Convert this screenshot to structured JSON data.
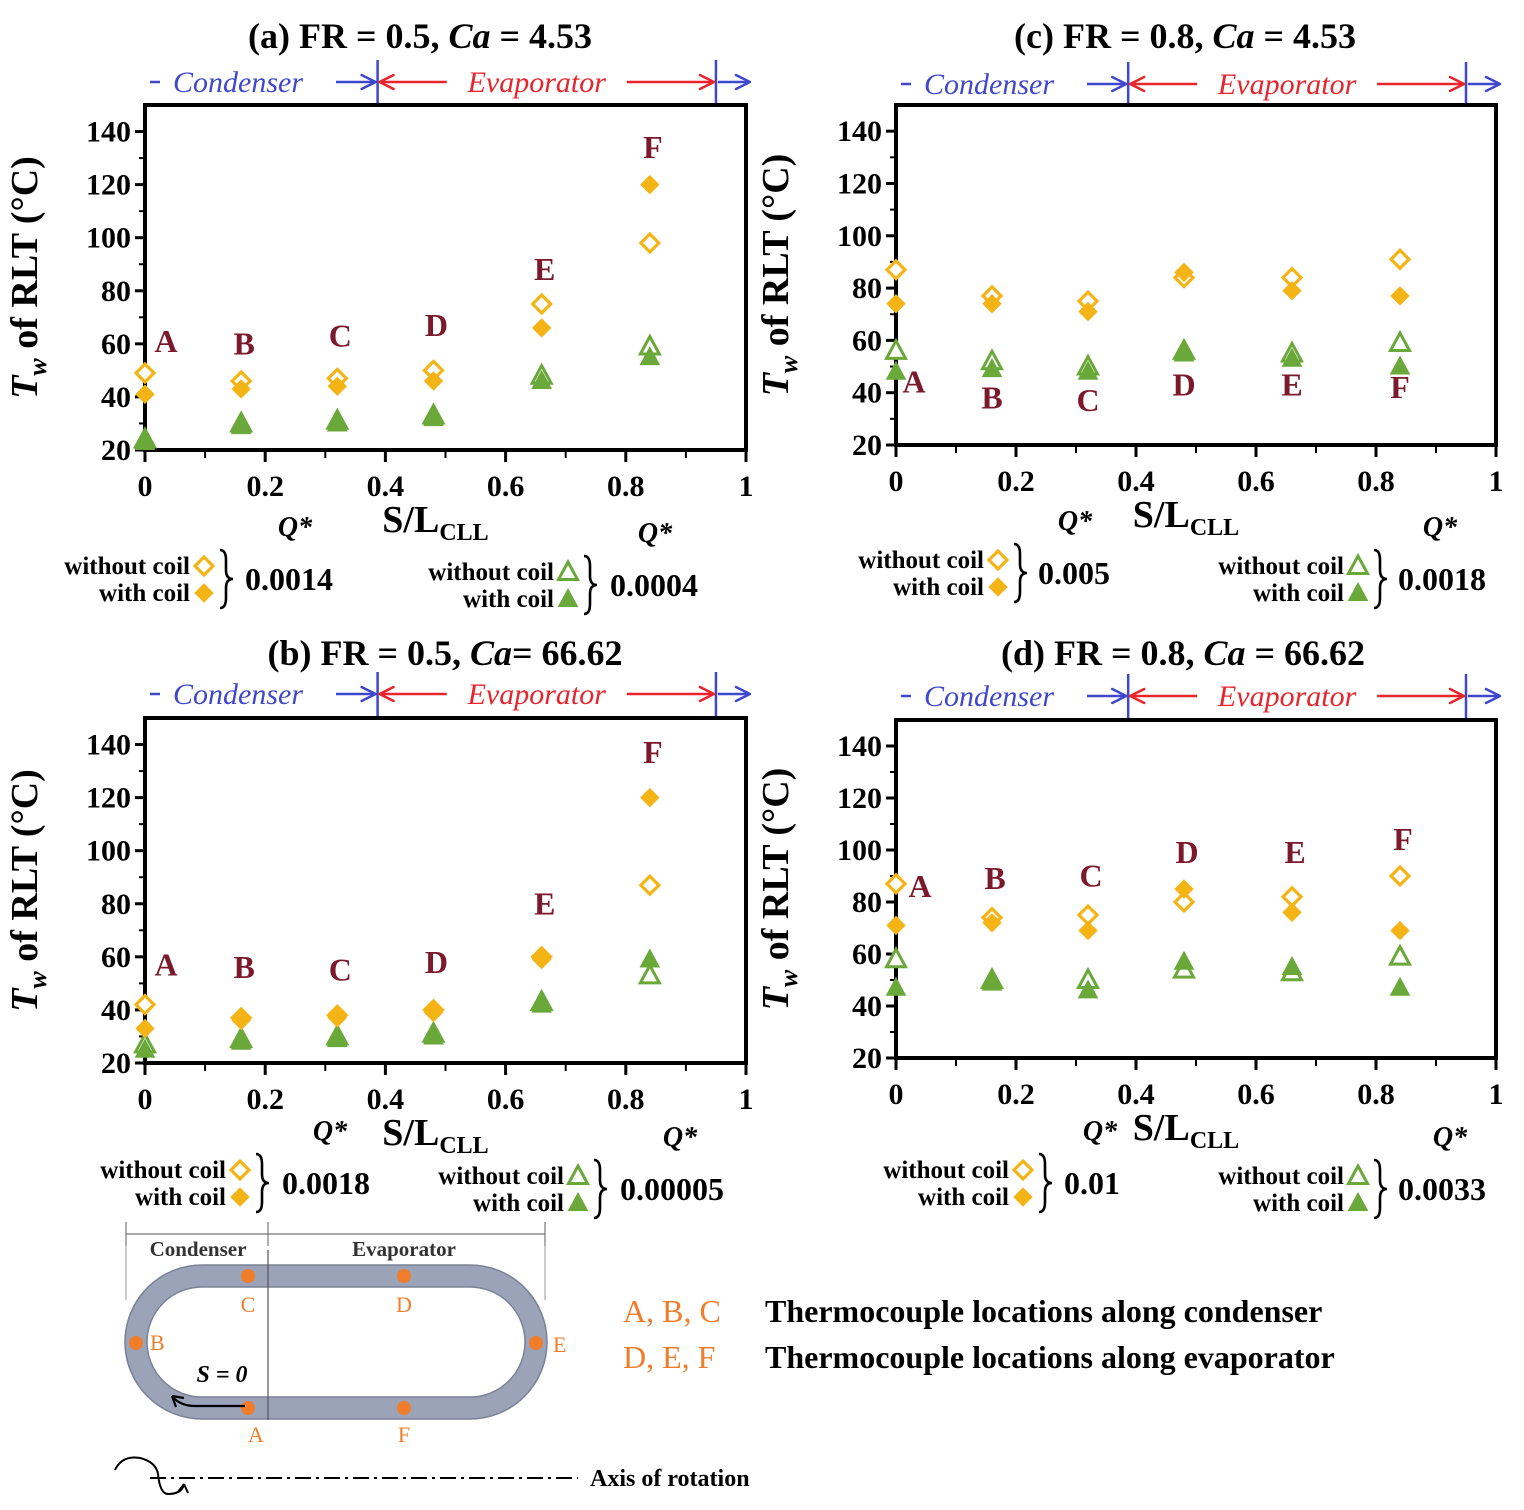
{
  "colors": {
    "diamond": "#f5b416",
    "triangle": "#6aa83a",
    "point_label": "#7b1a2c",
    "condenser": "#3f48cc",
    "evaporator": "#e8242c",
    "tube": "#9ba3b8",
    "tube_edge": "#7a8296",
    "thermocouple": "#ef7d2a"
  },
  "chart_data": [
    {
      "id": "a",
      "type": "scatter",
      "title_parts": {
        "prefix": "(a) FR = 0.5, ",
        "ca": "Ca",
        "suffix": " = 4.53"
      },
      "xlabel": {
        "main": "S/L",
        "sub": "CLL"
      },
      "ylabel": {
        "t": "T",
        "sub": "w",
        "rest": " of RLT (°C)"
      },
      "xlim": [
        0,
        1
      ],
      "ylim": [
        20,
        150
      ],
      "xticks": [
        "0",
        "0.2",
        "0.4",
        "0.6",
        "0.8",
        "1"
      ],
      "yticks": [
        "20",
        "40",
        "60",
        "80",
        "100",
        "120",
        "140"
      ],
      "regions": {
        "condenser": "Condenser",
        "evaporator": "Evaporator"
      },
      "series": [
        {
          "name": "without coil",
          "marker": "diamond-open",
          "x": [
            0,
            0.16,
            0.32,
            0.48,
            0.66,
            0.84
          ],
          "y": [
            49,
            46,
            47,
            50,
            75,
            98
          ]
        },
        {
          "name": "with coil",
          "marker": "diamond-filled",
          "x": [
            0,
            0.16,
            0.32,
            0.48,
            0.66,
            0.84
          ],
          "y": [
            41,
            43,
            44,
            46,
            66,
            120
          ]
        },
        {
          "name": "without coil",
          "marker": "triangle-open",
          "x": [
            0,
            0.16,
            0.32,
            0.48,
            0.66,
            0.84
          ],
          "y": [
            24,
            30,
            31,
            33,
            48,
            59
          ]
        },
        {
          "name": "with coil",
          "marker": "triangle-filled",
          "x": [
            0,
            0.16,
            0.32,
            0.48,
            0.66,
            0.84
          ],
          "y": [
            23,
            29,
            30,
            32,
            46,
            55
          ]
        }
      ],
      "point_labels": [
        {
          "text": "A",
          "x": 0.035,
          "y": 57
        },
        {
          "text": "B",
          "x": 0.165,
          "y": 56
        },
        {
          "text": "C",
          "x": 0.325,
          "y": 59
        },
        {
          "text": "D",
          "x": 0.485,
          "y": 63
        },
        {
          "text": "E",
          "x": 0.665,
          "y": 84
        },
        {
          "text": "F",
          "x": 0.845,
          "y": 130
        }
      ],
      "legends": [
        {
          "without": "without coil",
          "with": "with coil",
          "q_label": "Q*",
          "q_value": "0.0014"
        },
        {
          "without": "without coil",
          "with": "with coil",
          "q_label": "Q*",
          "q_value": "0.0004"
        }
      ]
    },
    {
      "id": "c",
      "type": "scatter",
      "title_parts": {
        "prefix": "(c) FR = 0.8, ",
        "ca": "Ca",
        "suffix": " = 4.53"
      },
      "xlabel": {
        "main": "S/L",
        "sub": "CLL"
      },
      "ylabel": {
        "t": "T",
        "sub": "w",
        "rest": " of RLT (°C)"
      },
      "xlim": [
        0,
        1
      ],
      "ylim": [
        20,
        150
      ],
      "xticks": [
        "0",
        "0.2",
        "0.4",
        "0.6",
        "0.8",
        "1"
      ],
      "yticks": [
        "20",
        "40",
        "60",
        "80",
        "100",
        "120",
        "140"
      ],
      "regions": {
        "condenser": "Condenser",
        "evaporator": "Evaporator"
      },
      "series": [
        {
          "name": "without coil",
          "marker": "diamond-open",
          "x": [
            0,
            0.16,
            0.32,
            0.48,
            0.66,
            0.84
          ],
          "y": [
            87,
            77,
            75,
            84,
            84,
            91
          ]
        },
        {
          "name": "with coil",
          "marker": "diamond-filled",
          "x": [
            0,
            0.16,
            0.32,
            0.48,
            0.66,
            0.84
          ],
          "y": [
            74,
            74,
            71,
            86,
            79,
            77
          ]
        },
        {
          "name": "without coil",
          "marker": "triangle-open",
          "x": [
            0,
            0.16,
            0.32,
            0.48,
            0.66,
            0.84
          ],
          "y": [
            56,
            52,
            50,
            56,
            55,
            59
          ]
        },
        {
          "name": "with coil",
          "marker": "triangle-filled",
          "x": [
            0,
            0.16,
            0.32,
            0.48,
            0.66,
            0.84
          ],
          "y": [
            48,
            49,
            48,
            55,
            53,
            50
          ]
        }
      ],
      "point_labels": [
        {
          "text": "A",
          "x": 0.03,
          "y": 40
        },
        {
          "text": "B",
          "x": 0.16,
          "y": 34
        },
        {
          "text": "C",
          "x": 0.32,
          "y": 33
        },
        {
          "text": "D",
          "x": 0.48,
          "y": 39
        },
        {
          "text": "E",
          "x": 0.66,
          "y": 39
        },
        {
          "text": "F",
          "x": 0.84,
          "y": 38
        }
      ],
      "legends": [
        {
          "without": "without coil",
          "with": "with coil",
          "q_label": "Q*",
          "q_value": "0.005"
        },
        {
          "without": "without coil",
          "with": "with coil",
          "q_label": "Q*",
          "q_value": "0.0018"
        }
      ]
    },
    {
      "id": "b",
      "type": "scatter",
      "title_parts": {
        "prefix": "(b) FR = 0.5,  ",
        "ca": "Ca",
        "suffix": "= 66.62"
      },
      "xlabel": {
        "main": "S/L",
        "sub": "CLL"
      },
      "ylabel": {
        "t": "T",
        "sub": "w",
        "rest": " of RLT (°C)"
      },
      "xlim": [
        0,
        1
      ],
      "ylim": [
        20,
        150
      ],
      "xticks": [
        "0",
        "0.2",
        "0.4",
        "0.6",
        "0.8",
        "1"
      ],
      "yticks": [
        "20",
        "40",
        "60",
        "80",
        "100",
        "120",
        "140"
      ],
      "regions": {
        "condenser": "Condenser",
        "evaporator": "Evaporator"
      },
      "series": [
        {
          "name": "without coil",
          "marker": "diamond-open",
          "x": [
            0,
            0.16,
            0.32,
            0.48,
            0.66,
            0.84
          ],
          "y": [
            42,
            37,
            38,
            40,
            60,
            87
          ]
        },
        {
          "name": "with coil",
          "marker": "diamond-filled",
          "x": [
            0,
            0.16,
            0.32,
            0.48,
            0.66,
            0.84
          ],
          "y": [
            33,
            36,
            37,
            39,
            59,
            120
          ]
        },
        {
          "name": "without coil",
          "marker": "triangle-open",
          "x": [
            0,
            0.16,
            0.32,
            0.48,
            0.66,
            0.84
          ],
          "y": [
            27,
            29,
            30,
            31,
            43,
            53
          ]
        },
        {
          "name": "with coil",
          "marker": "triangle-filled",
          "x": [
            0,
            0.16,
            0.32,
            0.48,
            0.66,
            0.84
          ],
          "y": [
            25,
            28,
            29,
            30,
            42,
            59
          ]
        }
      ],
      "point_labels": [
        {
          "text": "A",
          "x": 0.035,
          "y": 53
        },
        {
          "text": "B",
          "x": 0.165,
          "y": 52
        },
        {
          "text": "C",
          "x": 0.325,
          "y": 51
        },
        {
          "text": "D",
          "x": 0.485,
          "y": 54
        },
        {
          "text": "E",
          "x": 0.665,
          "y": 76
        },
        {
          "text": "F",
          "x": 0.845,
          "y": 133
        }
      ],
      "legends": [
        {
          "without": "without coil",
          "with": "with coil",
          "q_label": "Q*",
          "q_value": "0.0018"
        },
        {
          "without": "without coil",
          "with": "with coil",
          "q_label": "Q*",
          "q_value": "0.00005"
        }
      ]
    },
    {
      "id": "d",
      "type": "scatter",
      "title_parts": {
        "prefix": "(d) FR = 0.8, ",
        "ca": "Ca",
        "suffix": " = 66.62"
      },
      "xlabel": {
        "main": "S/L",
        "sub": "CLL"
      },
      "ylabel": {
        "t": "T",
        "sub": "w",
        "rest": " of RLT (°C)"
      },
      "xlim": [
        0,
        1
      ],
      "ylim": [
        20,
        150
      ],
      "xticks": [
        "0",
        "0.2",
        "0.4",
        "0.6",
        "0.8",
        "1"
      ],
      "yticks": [
        "20",
        "40",
        "60",
        "80",
        "100",
        "120",
        "140"
      ],
      "regions": {
        "condenser": "Condenser",
        "evaporator": "Evaporator"
      },
      "series": [
        {
          "name": "without coil",
          "marker": "diamond-open",
          "x": [
            0,
            0.16,
            0.32,
            0.48,
            0.66,
            0.84
          ],
          "y": [
            87,
            74,
            75,
            80,
            82,
            90
          ]
        },
        {
          "name": "with coil",
          "marker": "diamond-filled",
          "x": [
            0,
            0.16,
            0.32,
            0.48,
            0.66,
            0.84
          ],
          "y": [
            71,
            72,
            69,
            85,
            76,
            69
          ]
        },
        {
          "name": "without coil",
          "marker": "triangle-open",
          "x": [
            0,
            0.16,
            0.32,
            0.48,
            0.66,
            0.84
          ],
          "y": [
            58,
            50,
            50,
            54,
            53,
            59
          ]
        },
        {
          "name": "with coil",
          "marker": "triangle-filled",
          "x": [
            0,
            0.16,
            0.32,
            0.48,
            0.66,
            0.84
          ],
          "y": [
            47,
            49,
            46,
            57,
            55,
            47
          ]
        }
      ],
      "point_labels": [
        {
          "text": "A",
          "x": 0.04,
          "y": 82
        },
        {
          "text": "B",
          "x": 0.165,
          "y": 85
        },
        {
          "text": "C",
          "x": 0.325,
          "y": 86
        },
        {
          "text": "D",
          "x": 0.485,
          "y": 95
        },
        {
          "text": "E",
          "x": 0.665,
          "y": 95
        },
        {
          "text": "F",
          "x": 0.845,
          "y": 100
        }
      ],
      "legends": [
        {
          "without": "without coil",
          "with": "with coil",
          "q_label": "Q*",
          "q_value": "0.01"
        },
        {
          "without": "without coil",
          "with": "with coil",
          "q_label": "Q*",
          "q_value": "0.0033"
        }
      ]
    }
  ],
  "schematic": {
    "condenser": "Condenser",
    "evaporator": "Evaporator",
    "s_zero": "S = 0",
    "points": [
      "A",
      "B",
      "C",
      "D",
      "E",
      "F"
    ],
    "axis_label": "Axis of rotation",
    "legend_rows": [
      {
        "letters": "A, B, C",
        "text": "Thermocouple locations along condenser"
      },
      {
        "letters": "D, E, F",
        "text": "Thermocouple locations along evaporator"
      }
    ]
  }
}
